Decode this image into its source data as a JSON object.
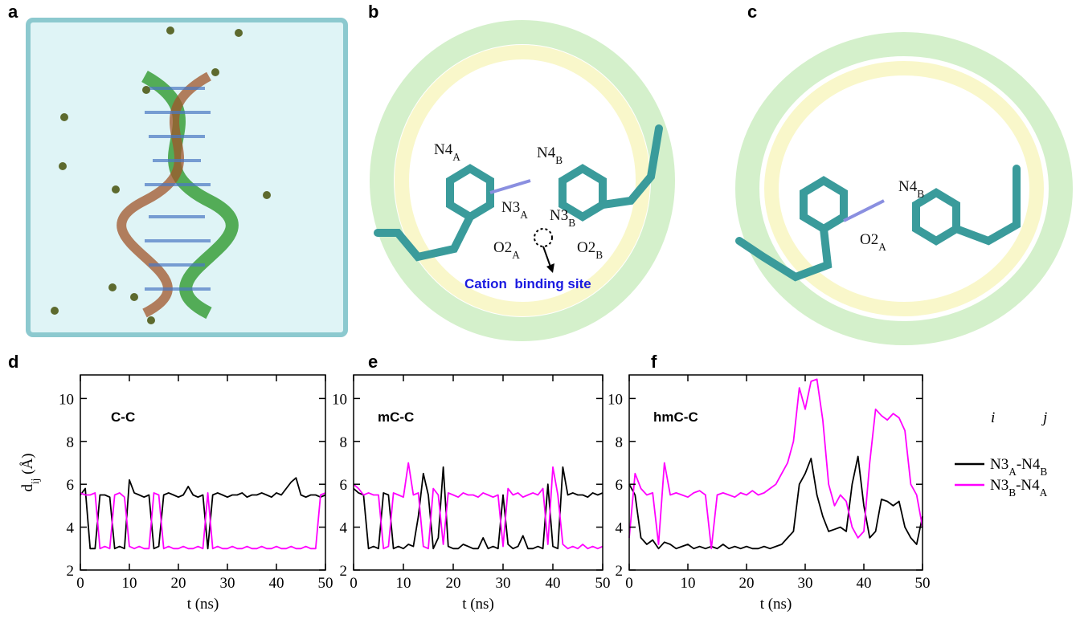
{
  "top_panels": [
    {
      "letter": "a"
    },
    {
      "letter": "b",
      "labels": [
        {
          "text": "N4",
          "sub": "A"
        },
        {
          "text": "N4",
          "sub": "B"
        },
        {
          "text": "N3",
          "sub": "A"
        },
        {
          "text": "N3",
          "sub": "B"
        },
        {
          "text": "O2",
          "sub": "A"
        },
        {
          "text": "O2",
          "sub": "B"
        }
      ],
      "annotation": "Cation  binding site"
    },
    {
      "letter": "c",
      "labels": [
        {
          "text": "N4",
          "sub": "B"
        },
        {
          "text": "O2",
          "sub": "A"
        }
      ]
    }
  ],
  "chart_data": [
    {
      "type": "line",
      "label": "d",
      "annotation": "C-C",
      "xlabel": "t (ns)",
      "ylabel": {
        "text": "d",
        "sub": "ij",
        "suffix": " (Å)"
      },
      "x": [
        0,
        1,
        2,
        3,
        4,
        5,
        6,
        7,
        8,
        9,
        10,
        11,
        12,
        13,
        14,
        15,
        16,
        17,
        18,
        19,
        20,
        21,
        22,
        23,
        24,
        25,
        26,
        27,
        28,
        29,
        30,
        31,
        32,
        33,
        34,
        35,
        36,
        37,
        38,
        39,
        40,
        41,
        42,
        43,
        44,
        45,
        46,
        47,
        48,
        49,
        50
      ],
      "xlim": [
        0,
        50
      ],
      "xticks": [
        0,
        10,
        20,
        30,
        40,
        50
      ],
      "ylim": [
        2,
        11.1
      ],
      "yticks": [
        2,
        4,
        6,
        8,
        10
      ],
      "series": [
        {
          "color": "#000000",
          "values": [
            5.5,
            5.8,
            3.0,
            3.0,
            5.5,
            5.5,
            5.4,
            3.0,
            3.1,
            3.0,
            6.2,
            5.6,
            5.5,
            5.4,
            5.5,
            3.0,
            3.1,
            5.5,
            5.6,
            5.5,
            5.4,
            5.5,
            5.9,
            5.5,
            5.4,
            5.5,
            3.0,
            5.5,
            5.6,
            5.5,
            5.4,
            5.5,
            5.5,
            5.6,
            5.4,
            5.5,
            5.5,
            5.6,
            5.5,
            5.4,
            5.6,
            5.5,
            5.8,
            6.1,
            6.3,
            5.5,
            5.4,
            5.5,
            5.5,
            5.4,
            5.5
          ]
        },
        {
          "color": "#ff00ff",
          "values": [
            5.6,
            5.5,
            5.5,
            5.6,
            3.0,
            3.1,
            3.0,
            5.5,
            5.6,
            5.4,
            3.1,
            3.0,
            3.1,
            3.0,
            3.0,
            5.6,
            5.5,
            3.0,
            3.1,
            3.0,
            3.0,
            3.1,
            3.0,
            3.0,
            3.1,
            3.0,
            5.6,
            3.0,
            3.1,
            3.0,
            3.0,
            3.1,
            3.0,
            3.0,
            3.1,
            3.0,
            3.0,
            3.1,
            3.0,
            3.0,
            3.1,
            3.0,
            3.0,
            3.1,
            3.0,
            3.0,
            3.1,
            3.0,
            3.0,
            5.5,
            5.6
          ]
        }
      ]
    },
    {
      "type": "line",
      "label": "e",
      "annotation": "mC-C",
      "xlabel": "t (ns)",
      "x": [
        0,
        1,
        2,
        3,
        4,
        5,
        6,
        7,
        8,
        9,
        10,
        11,
        12,
        13,
        14,
        15,
        16,
        17,
        18,
        19,
        20,
        21,
        22,
        23,
        24,
        25,
        26,
        27,
        28,
        29,
        30,
        31,
        32,
        33,
        34,
        35,
        36,
        37,
        38,
        39,
        40,
        41,
        42,
        43,
        44,
        45,
        46,
        47,
        48,
        49,
        50
      ],
      "xlim": [
        0,
        50
      ],
      "xticks": [
        0,
        10,
        20,
        30,
        40,
        50
      ],
      "ylim": [
        2,
        11.1
      ],
      "yticks": [
        2,
        4,
        6,
        8,
        10
      ],
      "series": [
        {
          "color": "#000000",
          "values": [
            5.8,
            5.6,
            5.5,
            3.0,
            3.1,
            3.0,
            5.6,
            5.5,
            3.0,
            3.1,
            3.0,
            3.2,
            3.1,
            4.5,
            6.5,
            5.5,
            3.0,
            3.5,
            6.8,
            3.1,
            3.0,
            3.0,
            3.2,
            3.1,
            3.0,
            3.0,
            3.5,
            3.0,
            3.1,
            3.0,
            5.5,
            3.2,
            3.0,
            3.1,
            3.6,
            3.0,
            3.0,
            3.1,
            3.0,
            6.0,
            3.1,
            3.0,
            6.8,
            5.5,
            5.6,
            5.5,
            5.5,
            5.4,
            5.6,
            5.5,
            5.6
          ]
        },
        {
          "color": "#ff00ff",
          "values": [
            6.0,
            5.8,
            5.5,
            5.6,
            5.5,
            5.5,
            3.0,
            3.1,
            5.6,
            5.5,
            5.4,
            7.0,
            5.5,
            5.6,
            3.1,
            3.0,
            5.8,
            5.5,
            3.2,
            5.6,
            5.5,
            5.4,
            5.6,
            5.5,
            5.5,
            5.4,
            5.6,
            5.5,
            5.4,
            5.5,
            3.1,
            5.8,
            5.5,
            5.6,
            5.4,
            5.5,
            5.6,
            5.5,
            5.8,
            3.2,
            6.8,
            5.5,
            3.2,
            3.0,
            3.1,
            3.0,
            3.2,
            3.0,
            3.1,
            3.0,
            3.1
          ]
        }
      ]
    },
    {
      "type": "line",
      "label": "f",
      "annotation": "hmC-C",
      "xlabel": "t (ns)",
      "x": [
        0,
        1,
        2,
        3,
        4,
        5,
        6,
        7,
        8,
        9,
        10,
        11,
        12,
        13,
        14,
        15,
        16,
        17,
        18,
        19,
        20,
        21,
        22,
        23,
        24,
        25,
        26,
        27,
        28,
        29,
        30,
        31,
        32,
        33,
        34,
        35,
        36,
        37,
        38,
        39,
        40,
        41,
        42,
        43,
        44,
        45,
        46,
        47,
        48,
        49,
        50
      ],
      "xlim": [
        0,
        50
      ],
      "xticks": [
        0,
        10,
        20,
        30,
        40,
        50
      ],
      "ylim": [
        2,
        11.1
      ],
      "yticks": [
        2,
        4,
        6,
        8,
        10
      ],
      "legend_header": [
        "i",
        "j"
      ],
      "series": [
        {
          "name": [
            "N3",
            "A",
            "-N4",
            "B"
          ],
          "color": "#000000",
          "values": [
            6.0,
            5.5,
            3.5,
            3.2,
            3.4,
            3.0,
            3.3,
            3.2,
            3.0,
            3.1,
            3.2,
            3.0,
            3.1,
            3.0,
            3.1,
            3.0,
            3.2,
            3.0,
            3.1,
            3.0,
            3.1,
            3.0,
            3.0,
            3.1,
            3.0,
            3.1,
            3.2,
            3.5,
            3.8,
            6.0,
            6.5,
            7.2,
            5.5,
            4.5,
            3.8,
            3.9,
            4.0,
            3.8,
            6.0,
            7.3,
            5.0,
            3.5,
            3.8,
            5.3,
            5.2,
            5.0,
            5.2,
            4.0,
            3.5,
            3.2,
            4.5
          ]
        },
        {
          "name": [
            "N3",
            "B",
            "-N4",
            "A"
          ],
          "color": "#ff00ff",
          "values": [
            3.5,
            6.5,
            5.8,
            5.5,
            5.6,
            3.2,
            7.0,
            5.5,
            5.6,
            5.5,
            5.4,
            5.6,
            5.7,
            5.5,
            3.0,
            5.5,
            5.6,
            5.5,
            5.4,
            5.6,
            5.5,
            5.7,
            5.5,
            5.6,
            5.8,
            6.0,
            6.5,
            7.0,
            8.0,
            10.5,
            9.5,
            10.8,
            10.9,
            9.0,
            6.0,
            5.0,
            5.5,
            5.2,
            4.0,
            3.5,
            3.8,
            7.0,
            9.5,
            9.2,
            9.0,
            9.3,
            9.1,
            8.5,
            6.0,
            5.5,
            4.0
          ]
        }
      ]
    }
  ]
}
